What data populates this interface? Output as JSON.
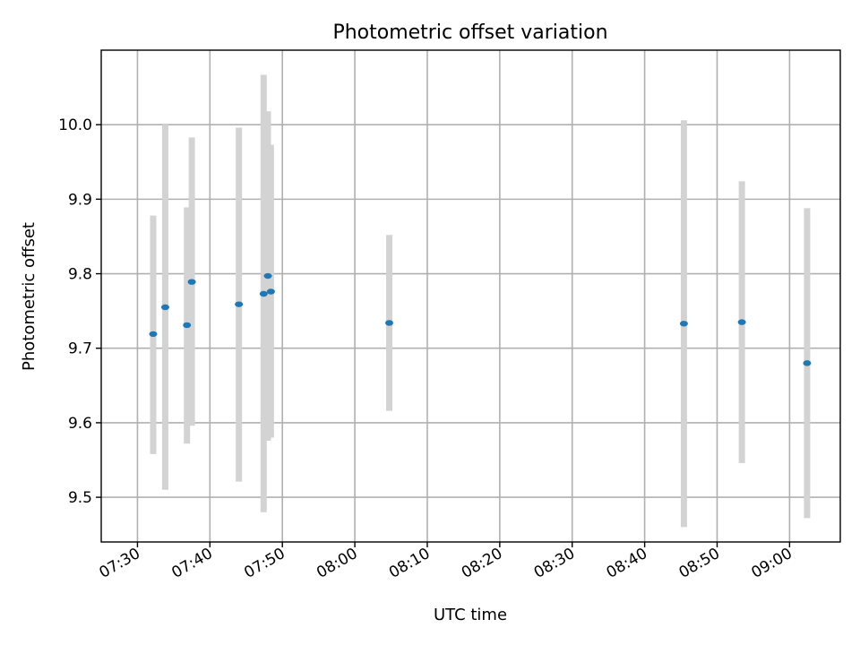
{
  "chart_data": {
    "type": "scatter",
    "title": "Photometric offset variation",
    "xlabel": "UTC time",
    "ylabel": "Photometric offset",
    "grid": true,
    "xlim": [
      "07:25:00",
      "09:07:00"
    ],
    "ylim": [
      9.44,
      10.1
    ],
    "xticks": [
      "07:30",
      "07:40",
      "07:50",
      "08:00",
      "08:10",
      "08:20",
      "08:30",
      "08:40",
      "08:50",
      "09:00"
    ],
    "yticks": [
      "9.5",
      "9.6",
      "9.7",
      "9.8",
      "9.9",
      "10.0"
    ],
    "colors": {
      "point": "#1f77b4",
      "errorbar": "#d3d3d3"
    },
    "series": [
      {
        "points": [
          {
            "x": "07:32:10",
            "y": 9.719,
            "err_low": 9.558,
            "err_high": 9.878
          },
          {
            "x": "07:33:50",
            "y": 9.755,
            "err_low": 9.51,
            "err_high": 10.0
          },
          {
            "x": "07:36:50",
            "y": 9.731,
            "err_low": 9.572,
            "err_high": 9.889
          },
          {
            "x": "07:37:30",
            "y": 9.789,
            "err_low": 9.596,
            "err_high": 9.983
          },
          {
            "x": "07:44:00",
            "y": 9.759,
            "err_low": 9.521,
            "err_high": 9.996
          },
          {
            "x": "07:47:25",
            "y": 9.773,
            "err_low": 9.48,
            "err_high": 10.067
          },
          {
            "x": "07:48:00",
            "y": 9.797,
            "err_low": 9.576,
            "err_high": 10.018
          },
          {
            "x": "07:48:25",
            "y": 9.776,
            "err_low": 9.58,
            "err_high": 9.973
          },
          {
            "x": "08:04:45",
            "y": 9.734,
            "err_low": 9.616,
            "err_high": 9.852
          },
          {
            "x": "08:45:25",
            "y": 9.733,
            "err_low": 9.46,
            "err_high": 10.006
          },
          {
            "x": "08:53:25",
            "y": 9.735,
            "err_low": 9.546,
            "err_high": 9.924
          },
          {
            "x": "09:02:25",
            "y": 9.68,
            "err_low": 9.472,
            "err_high": 9.888
          }
        ]
      }
    ]
  }
}
